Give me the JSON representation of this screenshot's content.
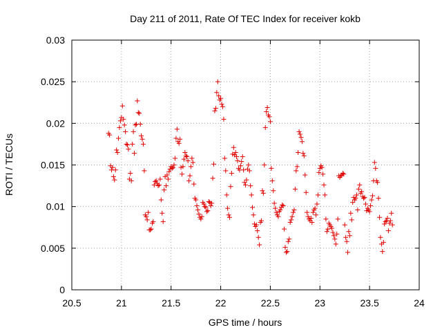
{
  "chart_data": {
    "type": "scatter",
    "title": "Day 211 of 2011, Rate Of TEC Index for receiver kokb",
    "xlabel": "GPS time / hours",
    "ylabel": "ROTI / TECUs",
    "xlim": [
      20.5,
      24
    ],
    "ylim": [
      0,
      0.03
    ],
    "xticks": [
      20.5,
      21,
      21.5,
      22,
      22.5,
      23,
      23.5,
      24
    ],
    "xtick_labels": [
      "20.5",
      "21",
      "21.5",
      "22",
      "22.5",
      "23",
      "23.5",
      "24"
    ],
    "yticks": [
      0,
      0.005,
      0.01,
      0.015,
      0.02,
      0.025,
      0.03
    ],
    "ytick_labels": [
      "0",
      "0.005",
      "0.01",
      "0.015",
      "0.02",
      "0.025",
      "0.03"
    ],
    "grid": true,
    "marker": "plus",
    "color": "#e00000",
    "series": [
      {
        "x": [
          20.87,
          20.88,
          20.89,
          20.9,
          20.91,
          20.92,
          20.93,
          20.94,
          20.95,
          20.96,
          20.97,
          20.98,
          20.99,
          21.0,
          21.01,
          21.02,
          21.03,
          21.04,
          21.05,
          21.06,
          21.07,
          21.08,
          21.09,
          21.1,
          21.11,
          21.12,
          21.13,
          21.14,
          21.15,
          21.16,
          21.17,
          21.18,
          21.19,
          21.2,
          21.21,
          21.22,
          21.23,
          21.24,
          21.25,
          21.26,
          21.27,
          21.28,
          21.29,
          21.3,
          21.31,
          21.32,
          21.33,
          21.34,
          21.35,
          21.36,
          21.37,
          21.38,
          21.39,
          21.4,
          21.41,
          21.42,
          21.43,
          21.44,
          21.45,
          21.46,
          21.47,
          21.48,
          21.49,
          21.5,
          21.51,
          21.52,
          21.53,
          21.54,
          21.55,
          21.56,
          21.57,
          21.58,
          21.59,
          21.6,
          21.61,
          21.62,
          21.63,
          21.64,
          21.65,
          21.66,
          21.67,
          21.68,
          21.69,
          21.7,
          21.71,
          21.72,
          21.73,
          21.74,
          21.75,
          21.76,
          21.77,
          21.78,
          21.79,
          21.8,
          21.81,
          21.82,
          21.83,
          21.84,
          21.85,
          21.86,
          21.87,
          21.88,
          21.89,
          21.9,
          21.91,
          21.92,
          21.93,
          21.94,
          21.95,
          21.96,
          21.97,
          21.98,
          21.99,
          22.0,
          22.01,
          22.02,
          22.03,
          22.04,
          22.05,
          22.06,
          22.07,
          22.08,
          22.09,
          22.1,
          22.11,
          22.12,
          22.13,
          22.14,
          22.15,
          22.16,
          22.17,
          22.18,
          22.19,
          22.2,
          22.21,
          22.22,
          22.23,
          22.24,
          22.25,
          22.26,
          22.27,
          22.28,
          22.29,
          22.3,
          22.31,
          22.32,
          22.33,
          22.34,
          22.35,
          22.36,
          22.37,
          22.38,
          22.39,
          22.4,
          22.41,
          22.42,
          22.43,
          22.44,
          22.45,
          22.46,
          22.47,
          22.48,
          22.49,
          22.5,
          22.51,
          22.52,
          22.53,
          22.54,
          22.55,
          22.56,
          22.57,
          22.58,
          22.59,
          22.6,
          22.61,
          22.62,
          22.63,
          22.64,
          22.65,
          22.66,
          22.67,
          22.68,
          22.69,
          22.7,
          22.71,
          22.72,
          22.73,
          22.74,
          22.75,
          22.76,
          22.77,
          22.78,
          22.79,
          22.8,
          22.81,
          22.82,
          22.83,
          22.84,
          22.85,
          22.86,
          22.87,
          22.88,
          22.89,
          22.9,
          22.91,
          22.92,
          22.93,
          22.94,
          22.95,
          22.96,
          22.97,
          22.98,
          22.99,
          23.0,
          23.01,
          23.02,
          23.03,
          23.04,
          23.05,
          23.06,
          23.07,
          23.08,
          23.09,
          23.1,
          23.11,
          23.12,
          23.13,
          23.14,
          23.15,
          23.16,
          23.17,
          23.18,
          23.19,
          23.2,
          23.21,
          23.22,
          23.23,
          23.24,
          23.25,
          23.26,
          23.27,
          23.28,
          23.29,
          23.3,
          23.31,
          23.32,
          23.33,
          23.34,
          23.35,
          23.36,
          23.37,
          23.38,
          23.39,
          23.4,
          23.41,
          23.42,
          23.43,
          23.44,
          23.45,
          23.46,
          23.47,
          23.48,
          23.49,
          23.5,
          23.51,
          23.52,
          23.53,
          23.54,
          23.55,
          23.56,
          23.57,
          23.58,
          23.59,
          23.6,
          23.61,
          23.62,
          23.63,
          23.64,
          23.65,
          23.66,
          23.67,
          23.68,
          23.69,
          23.7,
          23.71,
          23.72,
          23.73
        ],
        "y": [
          0.0188,
          0.0186,
          0.0149,
          0.0144,
          0.0147,
          0.0136,
          0.0132,
          0.0144,
          0.0168,
          0.0165,
          0.0182,
          0.0195,
          0.0203,
          0.0207,
          0.0221,
          0.0205,
          0.0198,
          0.019,
          0.0175,
          0.0174,
          0.0169,
          0.0133,
          0.014,
          0.0131,
          0.0175,
          0.019,
          0.0164,
          0.0198,
          0.0199,
          0.0227,
          0.0213,
          0.0212,
          0.0199,
          0.0185,
          0.0181,
          0.0175,
          0.0143,
          0.009,
          0.0088,
          0.0084,
          0.0093,
          0.0072,
          0.0072,
          0.0073,
          0.008,
          0.0082,
          0.0126,
          0.013,
          0.0131,
          0.0128,
          0.0125,
          0.0126,
          0.0133,
          0.0108,
          0.0092,
          0.0082,
          0.012,
          0.0136,
          0.0125,
          0.0138,
          0.0133,
          0.0142,
          0.0145,
          0.0148,
          0.0146,
          0.0147,
          0.015,
          0.0158,
          0.0182,
          0.0193,
          0.0178,
          0.0176,
          0.0181,
          0.0147,
          0.0139,
          0.0148,
          0.0157,
          0.0165,
          0.0161,
          0.016,
          0.0155,
          0.0131,
          0.0137,
          0.0148,
          0.0158,
          0.0153,
          0.0127,
          0.011,
          0.0108,
          0.0101,
          0.0096,
          0.0091,
          0.0087,
          0.0085,
          0.0088,
          0.0105,
          0.0103,
          0.01,
          0.0099,
          0.0094,
          0.0095,
          0.0106,
          0.0105,
          0.0101,
          0.0104,
          0.0134,
          0.0151,
          0.0215,
          0.0218,
          0.0237,
          0.025,
          0.0233,
          0.0228,
          0.023,
          0.0223,
          0.022,
          0.0205,
          0.0158,
          0.0143,
          0.0114,
          0.0098,
          0.009,
          0.0087,
          0.0124,
          0.014,
          0.0163,
          0.0171,
          0.0162,
          0.0165,
          0.016,
          0.0155,
          0.0146,
          0.0144,
          0.0149,
          0.0154,
          0.016,
          0.0144,
          0.0129,
          0.0126,
          0.0132,
          0.0145,
          0.015,
          0.0143,
          0.0125,
          0.0114,
          0.0099,
          0.009,
          0.0079,
          0.0076,
          0.0078,
          0.0071,
          0.0063,
          0.0054,
          0.0081,
          0.0083,
          0.0119,
          0.0116,
          0.015,
          0.0195,
          0.0214,
          0.0219,
          0.021,
          0.0208,
          0.0202,
          0.0146,
          0.0131,
          0.0119,
          0.0104,
          0.0098,
          0.0093,
          0.009,
          0.0088,
          0.0094,
          0.0096,
          0.0099,
          0.0102,
          0.0101,
          0.0073,
          0.0051,
          0.0045,
          0.0046,
          0.0058,
          0.0061,
          0.0081,
          0.0084,
          0.0088,
          0.0093,
          0.0096,
          0.0121,
          0.0143,
          0.0148,
          0.0165,
          0.019,
          0.0187,
          0.0183,
          0.0178,
          0.0164,
          0.0161,
          0.0138,
          0.0117,
          0.0093,
          0.0088,
          0.0085,
          0.0083,
          0.0086,
          0.0081,
          0.0093,
          0.0096,
          0.0098,
          0.009,
          0.0103,
          0.0114,
          0.0141,
          0.0146,
          0.0149,
          0.0147,
          0.0139,
          0.0126,
          0.0114,
          0.0085,
          0.007,
          0.0073,
          0.008,
          0.0078,
          0.0076,
          0.0074,
          0.0069,
          0.0065,
          0.0061,
          0.0055,
          0.0067,
          0.0085,
          0.0137,
          0.0135,
          0.0137,
          0.0138,
          0.014,
          0.0139,
          0.0078,
          0.0063,
          0.0058,
          0.0045,
          0.007,
          0.0065,
          0.0092,
          0.0084,
          0.0105,
          0.0111,
          0.0108,
          0.011,
          0.0114,
          0.0096,
          0.0121,
          0.0126,
          0.0116,
          0.0118,
          0.0112,
          0.011,
          0.0111,
          0.0103,
          0.0095,
          0.0098,
          0.0096,
          0.0094,
          0.0101,
          0.0108,
          0.0113,
          0.0131,
          0.0153,
          0.0146,
          0.0131,
          0.0129,
          0.011,
          0.0087,
          0.0063,
          0.0055,
          0.0046,
          0.0057,
          0.0079,
          0.0082,
          0.0083,
          0.0086,
          0.0071,
          0.008,
          0.0083,
          0.0092,
          0.0078
        ]
      }
    ]
  }
}
